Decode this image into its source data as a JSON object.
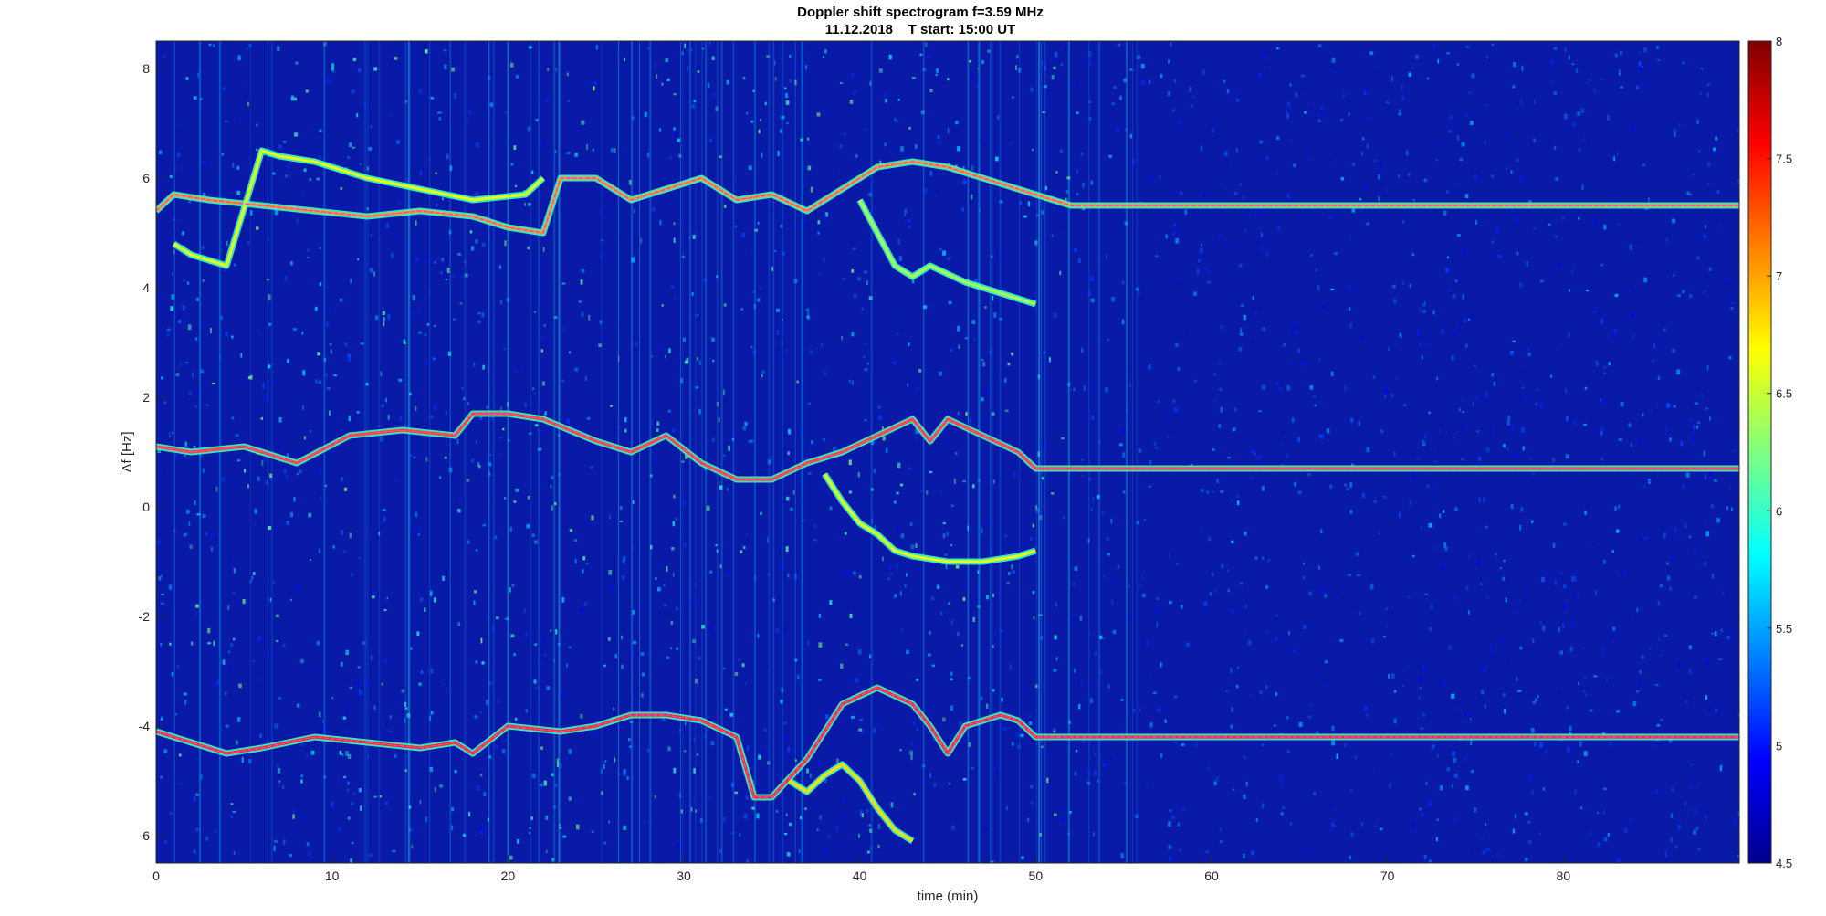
{
  "chart_data": {
    "type": "heatmap",
    "title": "Doppler shift spectrogram f=3.59 MHz",
    "subtitle": "11.12.2018    T start: 15:00 UT",
    "xlabel": "time (min)",
    "ylabel": "Δf [Hz]",
    "xlim": [
      0,
      90
    ],
    "ylim": [
      -6.5,
      8.5
    ],
    "xticks": [
      0,
      10,
      20,
      30,
      40,
      50,
      60,
      70,
      80
    ],
    "yticks": [
      -6,
      -4,
      -2,
      0,
      2,
      4,
      6,
      8
    ],
    "grid": false,
    "colormap": "jet",
    "colorbar": {
      "range": [
        4.5,
        8
      ],
      "ticks": [
        4.5,
        5,
        5.5,
        6,
        6.5,
        7,
        7.5,
        8
      ],
      "position": "right"
    },
    "background_level": 4.6,
    "traces": [
      {
        "name": "upper",
        "x": [
          0,
          1,
          3,
          6,
          9,
          12,
          15,
          18,
          20,
          22,
          23,
          25,
          27,
          29,
          31,
          33,
          35,
          37,
          39,
          41,
          43,
          45,
          47,
          49,
          50,
          51,
          52,
          60,
          70,
          80,
          90
        ],
        "y": [
          5.4,
          5.7,
          5.6,
          5.5,
          5.4,
          5.3,
          5.4,
          5.3,
          5.1,
          5.0,
          6.0,
          6.0,
          5.6,
          5.8,
          6.0,
          5.6,
          5.7,
          5.4,
          5.8,
          6.2,
          6.3,
          6.2,
          6.0,
          5.8,
          5.7,
          5.6,
          5.5,
          5.5,
          5.5,
          5.5,
          5.5
        ],
        "level": 7.0
      },
      {
        "name": "middle",
        "x": [
          0,
          2,
          5,
          8,
          11,
          14,
          17,
          18,
          20,
          22,
          25,
          27,
          29,
          31,
          33,
          35,
          37,
          39,
          41,
          43,
          44,
          45,
          47,
          49,
          50,
          60,
          70,
          80,
          90
        ],
        "y": [
          1.1,
          1.0,
          1.1,
          0.8,
          1.3,
          1.4,
          1.3,
          1.7,
          1.7,
          1.6,
          1.2,
          1.0,
          1.3,
          0.8,
          0.5,
          0.5,
          0.8,
          1.0,
          1.3,
          1.6,
          1.2,
          1.6,
          1.3,
          1.0,
          0.7,
          0.7,
          0.7,
          0.7,
          0.7
        ],
        "level": 7.3
      },
      {
        "name": "lower",
        "x": [
          0,
          2,
          4,
          6,
          9,
          12,
          15,
          17,
          18,
          20,
          23,
          25,
          27,
          29,
          31,
          33,
          34,
          35,
          37,
          39,
          41,
          43,
          44,
          45,
          46,
          48,
          49,
          50,
          60,
          70,
          80,
          90
        ],
        "y": [
          -4.1,
          -4.3,
          -4.5,
          -4.4,
          -4.2,
          -4.3,
          -4.4,
          -4.3,
          -4.5,
          -4.0,
          -4.1,
          -4.0,
          -3.8,
          -3.8,
          -3.9,
          -4.2,
          -5.3,
          -5.3,
          -4.6,
          -3.6,
          -3.3,
          -3.6,
          -4.0,
          -4.5,
          -4.0,
          -3.8,
          -3.9,
          -4.2,
          -4.2,
          -4.2,
          -4.2,
          -4.2
        ],
        "level": 7.4
      },
      {
        "name": "upper-branch",
        "x": [
          1,
          2,
          3,
          4,
          6,
          7,
          9,
          12,
          15,
          18,
          21,
          22
        ],
        "y": [
          4.8,
          4.6,
          4.5,
          4.4,
          6.5,
          6.4,
          6.3,
          6.0,
          5.8,
          5.6,
          5.7,
          6.0
        ],
        "level": 6.6
      },
      {
        "name": "upper-curl",
        "x": [
          40,
          41,
          42,
          43,
          44,
          46,
          48,
          50
        ],
        "y": [
          5.6,
          5.0,
          4.4,
          4.2,
          4.4,
          4.1,
          3.9,
          3.7
        ],
        "level": 6.4
      },
      {
        "name": "middle-curl",
        "x": [
          38,
          39,
          40,
          41,
          42,
          43,
          45,
          47,
          49,
          50
        ],
        "y": [
          0.6,
          0.1,
          -0.3,
          -0.5,
          -0.8,
          -0.9,
          -1.0,
          -1.0,
          -0.9,
          -0.8
        ],
        "level": 6.6
      },
      {
        "name": "lower-curl",
        "x": [
          36,
          37,
          38,
          39,
          40,
          41,
          42,
          43
        ],
        "y": [
          -5.0,
          -5.2,
          -4.9,
          -4.7,
          -5.0,
          -5.5,
          -5.9,
          -6.1
        ],
        "level": 6.8
      }
    ]
  }
}
